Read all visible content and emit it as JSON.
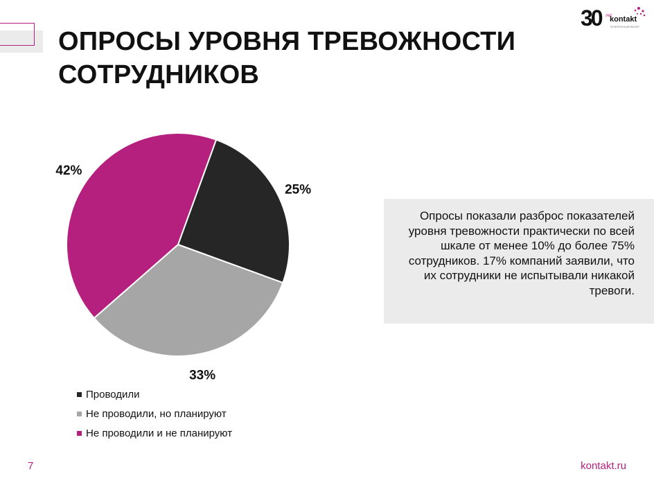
{
  "slide": {
    "title": "ОПРОСЫ УРОВНЯ ТРЕВОЖНОСТИ\nСОТРУДНИКОВ",
    "callout": "Опросы показали разброс показателей уровня тревожности практически по всей шкале от менее 10% до более 75% сотрудников. 17% компаний заявили, что их сотрудники не испытывали никакой тревоги.",
    "page_number": "7",
    "site": "kontakt.ru",
    "accent_color": "#b5207f"
  },
  "logo": {
    "number": "30",
    "years": "лет",
    "brand": "kontakt",
    "tagline": "ТЕЛЕФОННЫЙ ВИЗИТ"
  },
  "chart_data": {
    "type": "pie",
    "title": "",
    "labels": [
      "Проводили",
      "Не проводили, но планируют",
      "Не проводили и не планируют"
    ],
    "values": [
      25,
      33,
      42
    ],
    "value_labels": [
      "25%",
      "33%",
      "42%"
    ],
    "colors": [
      "#262626",
      "#a6a6a6",
      "#b5207f"
    ],
    "legend_position": "bottom-left"
  }
}
